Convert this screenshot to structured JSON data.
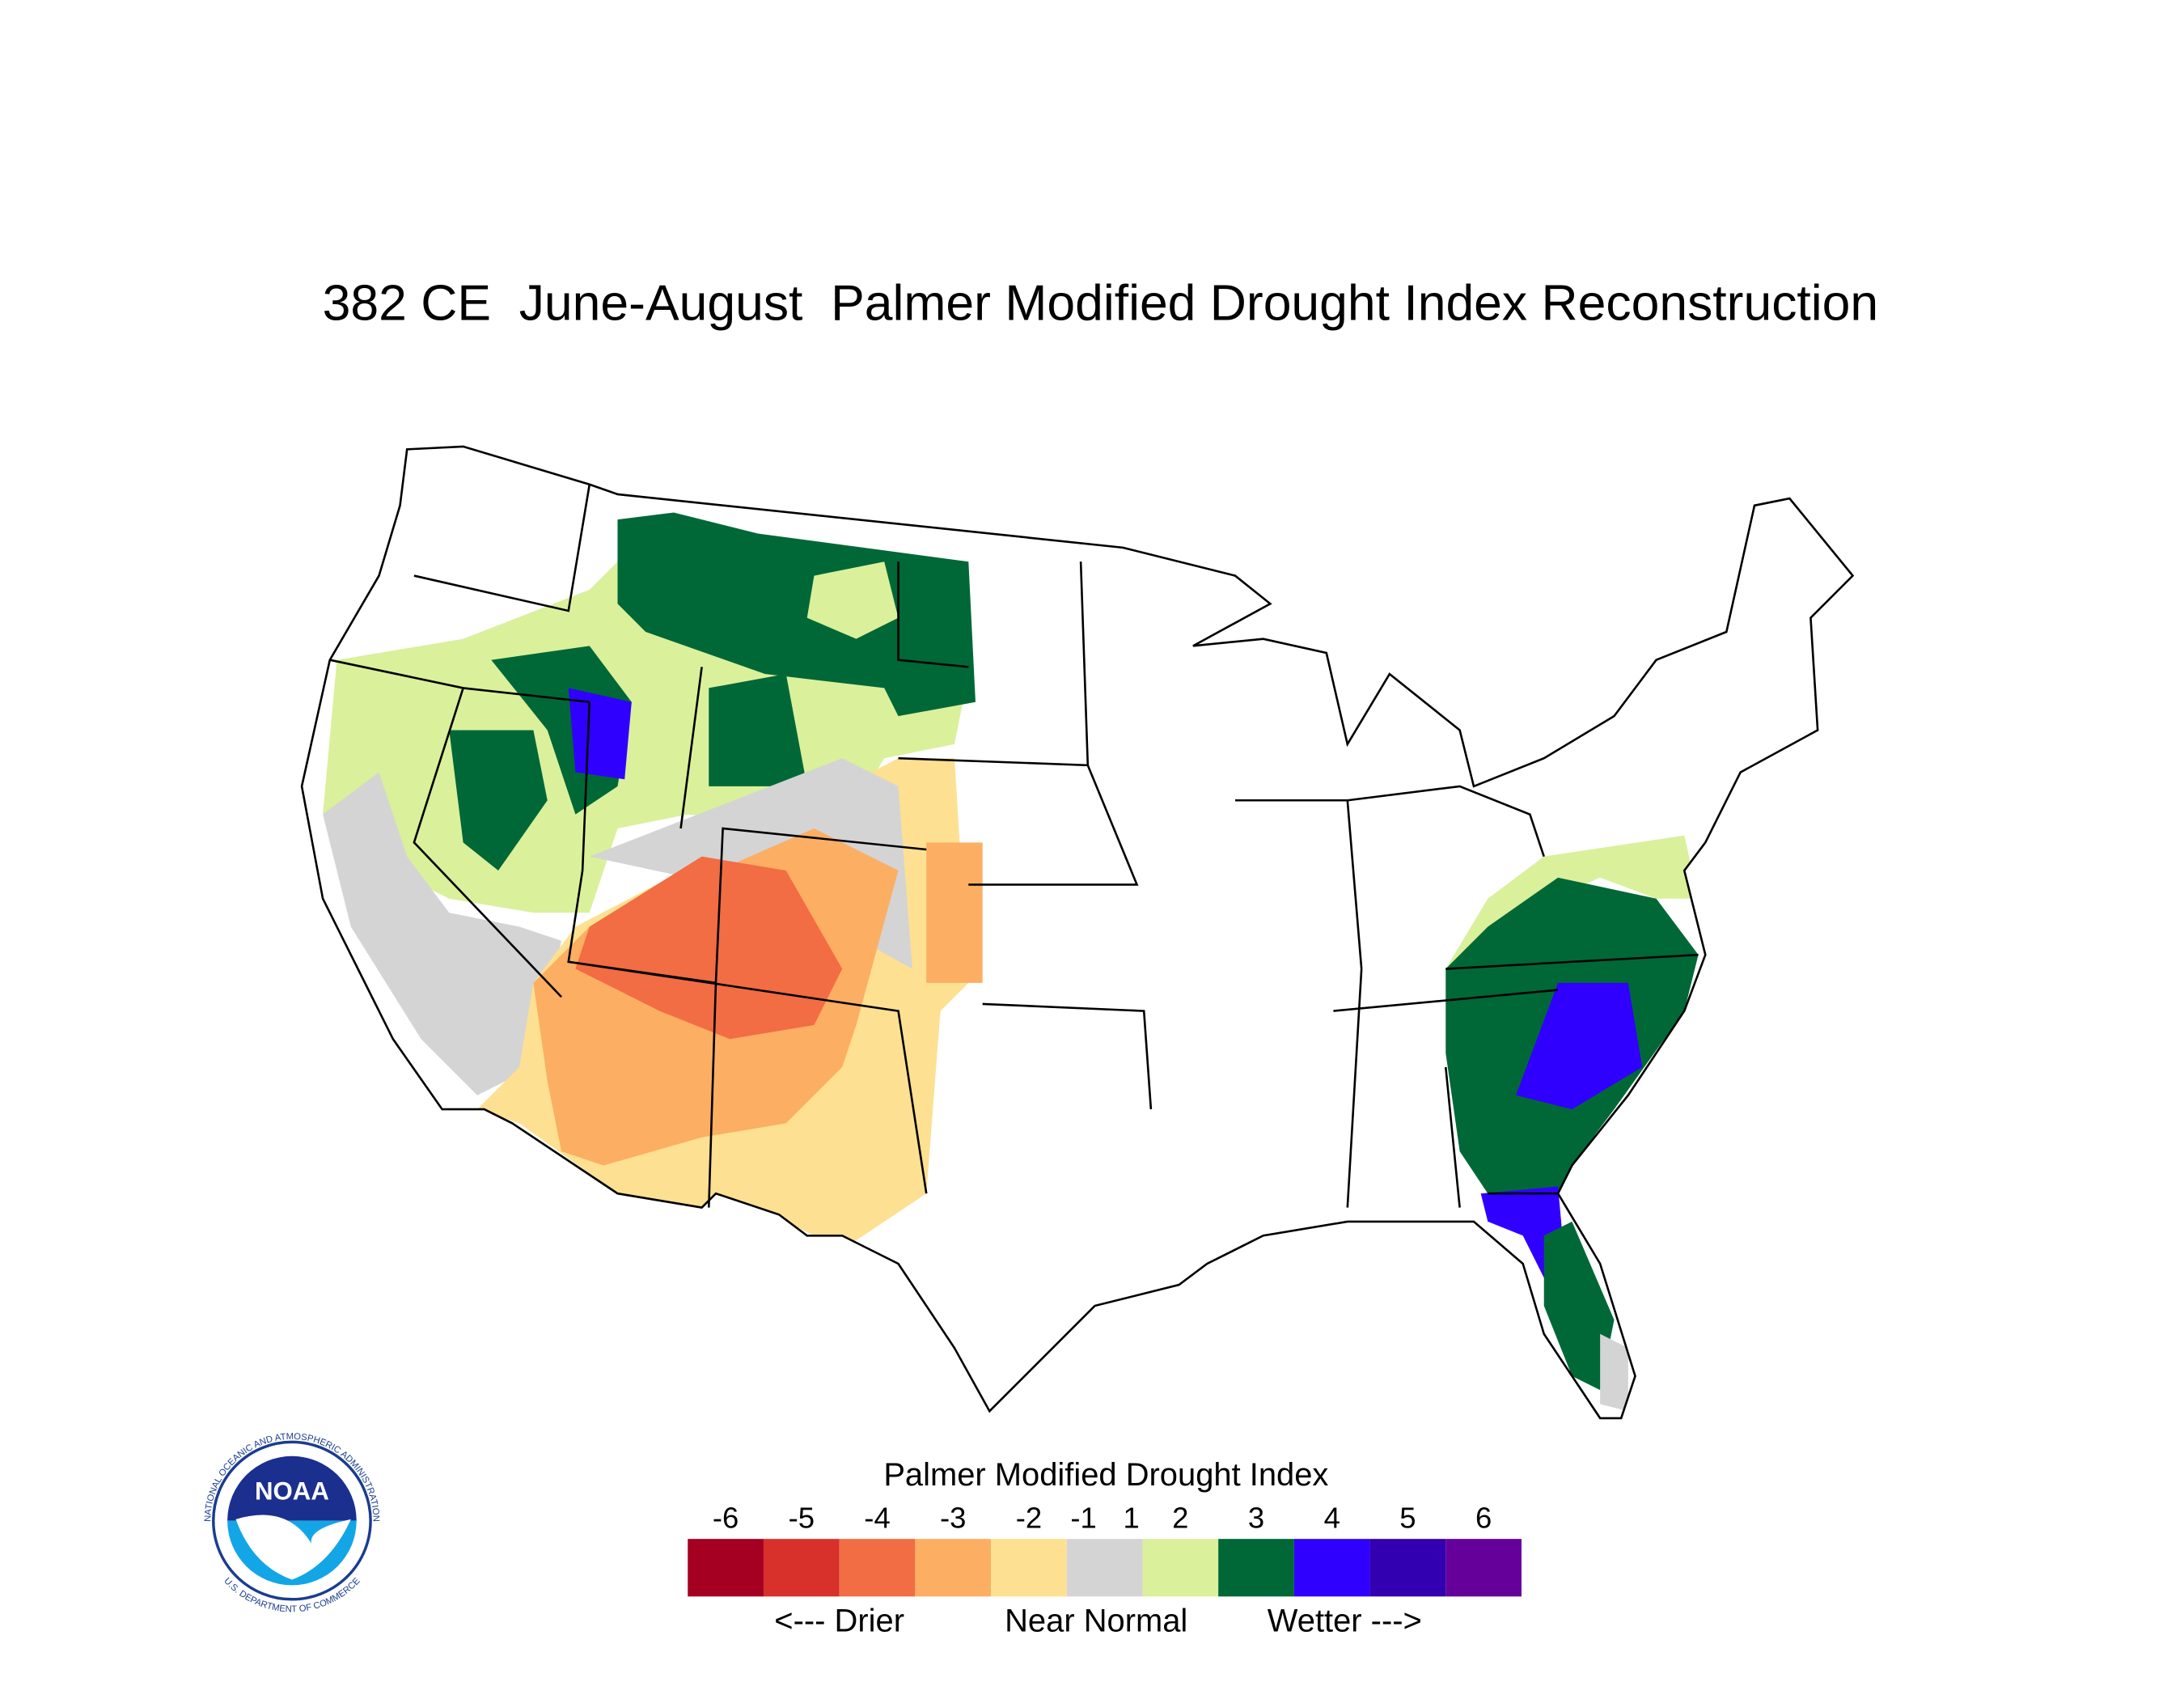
{
  "title": "382 CE  June-August  Palmer Modified Drought Index Reconstruction",
  "legend": {
    "title": "Palmer Modified Drought Index",
    "labels": [
      -6,
      -5,
      -4,
      -3,
      -2,
      -1,
      1,
      2,
      3,
      4,
      5,
      6
    ],
    "colors": [
      "#a50021",
      "#d8302a",
      "#f26c44",
      "#fcae63",
      "#fde092",
      "#d4d4d4",
      "#daf09b",
      "#006837",
      "#3000ff",
      "#3200b0",
      "#66009b"
    ],
    "notes": {
      "drier": "<--- Drier",
      "normal": "Near Normal",
      "wetter": "Wetter --->"
    }
  },
  "logo": {
    "label": "NOAA",
    "ring_top": "NATIONAL OCEANIC AND ATMOSPHERIC ADMINISTRATION",
    "ring_bottom": "U.S. DEPARTMENT OF COMMERCE"
  }
}
